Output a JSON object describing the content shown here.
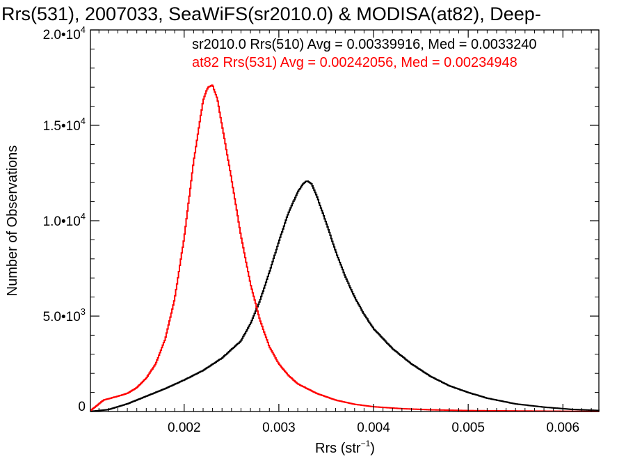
{
  "chart_data": {
    "type": "line",
    "title": "Rrs(531), 2007033, SeaWiFS(sr2010.0) & MODISA(at82), Deep-",
    "xlabel": "Rrs (str",
    "xlabel_sup": "−1",
    "xlabel_tail": ")",
    "ylabel": "Number of Observations",
    "xlim": [
      0.00101,
      0.00638
    ],
    "ylim": [
      0,
      20000
    ],
    "x_ticks": [
      {
        "value": 0.002,
        "label": "0.002"
      },
      {
        "value": 0.003,
        "label": "0.003"
      },
      {
        "value": 0.004,
        "label": "0.004"
      },
      {
        "value": 0.005,
        "label": "0.005"
      },
      {
        "value": 0.006,
        "label": "0.006"
      }
    ],
    "y_ticks": [
      {
        "value": 0,
        "label": "0",
        "sup": ""
      },
      {
        "value": 5000,
        "label": "5.0•10",
        "sup": "3"
      },
      {
        "value": 10000,
        "label": "1.0•10",
        "sup": "4"
      },
      {
        "value": 15000,
        "label": "1.5•10",
        "sup": "4"
      },
      {
        "value": 20000,
        "label": "2.0•10",
        "sup": "4"
      }
    ],
    "legend": [
      {
        "text": "sr2010.0 Rrs(510) Avg = 0.00339916, Med = 0.0033240",
        "color": "#000000"
      },
      {
        "text": "at82 Rrs(531) Avg = 0.00242056, Med = 0.00234948",
        "color": "#ff0000"
      }
    ],
    "series": [
      {
        "color": "#000000",
        "x": [
          0.001,
          0.0012,
          0.0014,
          0.0016,
          0.0018,
          0.002,
          0.0022,
          0.0024,
          0.0026,
          0.0027,
          0.0028,
          0.0029,
          0.003,
          0.0031,
          0.0032,
          0.00325,
          0.0033,
          0.00335,
          0.0034,
          0.0035,
          0.0036,
          0.0037,
          0.0038,
          0.0039,
          0.004,
          0.0042,
          0.0044,
          0.0046,
          0.0048,
          0.005,
          0.0052,
          0.0055,
          0.0058,
          0.0061,
          0.0064
        ],
        "y": [
          0,
          100,
          400,
          800,
          1200,
          1650,
          2150,
          2800,
          3700,
          4600,
          5800,
          7300,
          8900,
          10400,
          11500,
          11900,
          12100,
          11900,
          11300,
          9900,
          8400,
          7100,
          6000,
          5100,
          4350,
          3300,
          2500,
          1850,
          1350,
          1000,
          700,
          400,
          230,
          110,
          50
        ]
      },
      {
        "color": "#ff0000",
        "x": [
          0.001,
          0.00115,
          0.0013,
          0.0014,
          0.0015,
          0.0016,
          0.0017,
          0.0018,
          0.0019,
          0.002,
          0.0021,
          0.0022,
          0.00225,
          0.0023,
          0.00235,
          0.0024,
          0.0025,
          0.0026,
          0.0027,
          0.0028,
          0.0029,
          0.003,
          0.0031,
          0.0032,
          0.0033,
          0.0034,
          0.0036,
          0.0038,
          0.004,
          0.0043,
          0.0046,
          0.005,
          0.0055,
          0.006,
          0.0064
        ],
        "y": [
          0,
          600,
          800,
          950,
          1250,
          1750,
          2500,
          3800,
          5900,
          9100,
          13100,
          16300,
          17000,
          17100,
          16400,
          15000,
          12200,
          9200,
          6700,
          4800,
          3400,
          2500,
          1900,
          1450,
          1200,
          950,
          600,
          380,
          250,
          150,
          90,
          50,
          30,
          15,
          0
        ]
      }
    ]
  }
}
